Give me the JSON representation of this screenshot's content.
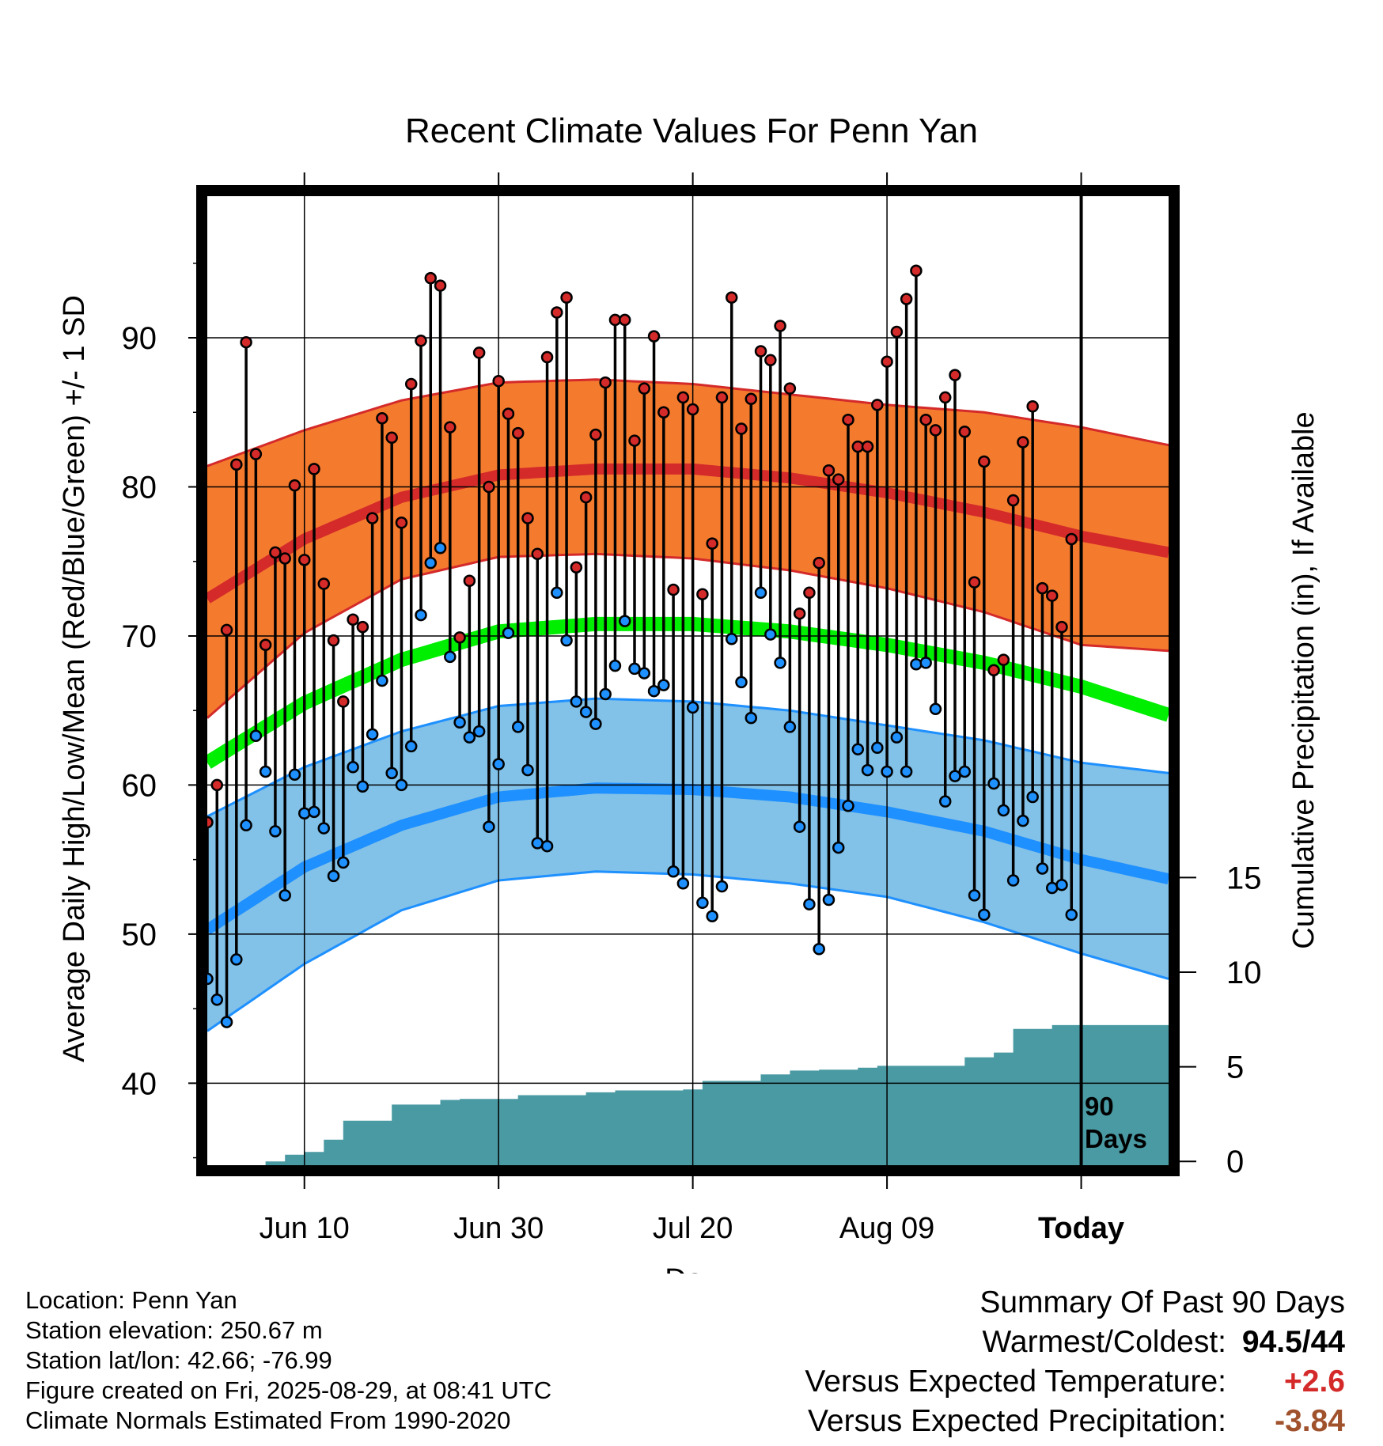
{
  "chart_data": {
    "type": "line",
    "title": "Recent Climate Values For Penn Yan",
    "xlabel": "Day",
    "ylabel": "Average Daily High/Low/Mean (Red/Blue/Green) +/- 1 SD",
    "y2label": "Cumulative Precipitation (in), If Available",
    "x_tick_labels": [
      "Jun 10",
      "Jun 30",
      "Jul 20",
      "Aug 09",
      "Today"
    ],
    "y_ticks": [
      40,
      50,
      60,
      70,
      80,
      90
    ],
    "y2_ticks": [
      0,
      5,
      10,
      15
    ],
    "ylim": [
      34.5,
      99.5
    ],
    "y2lim": [
      -0.2,
      51
    ],
    "x_start_day": -90,
    "today_label": "90 Days",
    "normals": {
      "colors": {
        "high": "#d42a2a",
        "high_band": "#f47b2e",
        "low": "#1e90ff",
        "low_band": "#82c1e8",
        "mean": "#00ee00"
      },
      "days": [
        -90,
        -80,
        -70,
        -60,
        -50,
        -40,
        -30,
        -20,
        -10,
        0,
        9
      ],
      "high_mean": [
        72.5,
        76.5,
        79.3,
        80.8,
        81.2,
        81.2,
        80.6,
        79.6,
        78.3,
        76.7,
        75.6
      ],
      "high_upper": [
        81.4,
        83.8,
        85.8,
        87.0,
        87.2,
        86.9,
        86.2,
        85.5,
        85.0,
        84.0,
        82.8
      ],
      "high_lower": [
        64.5,
        70.2,
        73.8,
        75.3,
        75.5,
        75.2,
        74.4,
        73.2,
        71.6,
        69.4,
        69.0
      ],
      "low_mean": [
        50.3,
        54.5,
        57.3,
        59.2,
        59.8,
        59.7,
        59.2,
        58.2,
        56.9,
        55.0,
        53.7
      ],
      "low_upper": [
        57.9,
        61.2,
        63.6,
        65.3,
        65.8,
        65.6,
        65.0,
        64.0,
        63.0,
        61.5,
        60.8
      ],
      "low_lower": [
        43.5,
        48.0,
        51.6,
        53.6,
        54.2,
        54.0,
        53.4,
        52.5,
        50.8,
        48.7,
        47.0
      ],
      "mean": [
        61.5,
        65.5,
        68.4,
        70.3,
        70.8,
        70.8,
        70.3,
        69.4,
        68.2,
        66.6,
        64.7
      ]
    },
    "daily": {
      "highs": [
        57.5,
        60.0,
        70.4,
        81.5,
        89.7,
        82.2,
        69.4,
        75.6,
        75.2,
        80.1,
        75.1,
        81.2,
        73.5,
        69.7,
        65.6,
        71.1,
        70.6,
        77.9,
        84.6,
        83.3,
        77.6,
        86.9,
        89.8,
        94.0,
        93.5,
        84.0,
        69.9,
        73.7,
        89.0,
        80.0,
        87.1,
        84.9,
        83.6,
        77.9,
        75.5,
        88.7,
        91.7,
        92.7,
        74.6,
        79.3,
        83.5,
        87.0,
        91.2,
        91.2,
        83.1,
        86.6,
        90.1,
        85.0,
        73.1,
        86.0,
        85.2,
        72.8,
        76.2,
        86.0,
        92.7,
        83.9,
        85.9,
        89.1,
        88.5,
        90.8,
        86.6,
        71.5,
        72.9,
        74.9,
        81.1,
        80.5,
        84.5,
        82.7,
        82.7,
        85.5,
        88.4,
        90.4,
        92.6,
        94.5,
        84.5,
        83.8,
        86.0,
        87.5,
        83.7,
        73.6,
        81.7,
        67.7,
        68.4,
        79.1,
        83.0,
        85.4,
        73.2,
        72.7,
        70.6,
        76.5
      ],
      "lows": [
        47.0,
        45.6,
        44.1,
        48.3,
        57.3,
        63.3,
        60.9,
        56.9,
        52.6,
        60.7,
        58.1,
        58.2,
        57.1,
        53.9,
        54.8,
        61.2,
        59.9,
        63.4,
        67.0,
        60.8,
        60.0,
        62.6,
        71.4,
        74.9,
        75.9,
        68.6,
        64.2,
        63.2,
        63.6,
        57.2,
        61.4,
        70.2,
        63.9,
        61.0,
        56.1,
        55.9,
        72.9,
        69.7,
        65.6,
        64.9,
        64.1,
        66.1,
        68.0,
        71.0,
        67.8,
        67.5,
        66.3,
        66.7,
        54.2,
        53.4,
        65.2,
        52.1,
        51.2,
        53.2,
        69.8,
        66.9,
        64.5,
        72.9,
        70.1,
        68.2,
        63.9,
        57.2,
        52.0,
        49.0,
        52.3,
        55.8,
        58.6,
        62.4,
        61.0,
        62.5,
        60.9,
        63.2,
        60.9,
        68.1,
        68.2,
        65.1,
        58.9,
        60.6,
        60.9,
        52.6,
        51.3,
        60.1,
        58.3,
        53.6,
        57.6,
        59.2,
        54.4,
        53.1,
        53.3,
        51.3
      ]
    },
    "precipitation": {
      "days": [
        -84,
        -82,
        -80,
        -78,
        -76,
        -71,
        -66,
        -64,
        -58,
        -51,
        -48,
        -41,
        -39,
        -33,
        -30,
        -27,
        -23,
        -21,
        -12,
        -9,
        -7,
        -3,
        9
      ],
      "cumulative": [
        0,
        0.35,
        0.5,
        1.15,
        2.15,
        3.0,
        3.25,
        3.3,
        3.5,
        3.65,
        3.75,
        3.8,
        4.25,
        4.6,
        4.8,
        4.85,
        4.95,
        5.05,
        5.5,
        5.75,
        7.0,
        7.2,
        7.3
      ]
    }
  },
  "footer": {
    "location": "Location: Penn Yan",
    "elevation": "Station elevation: 250.67 m",
    "latlon": "Station lat/lon: 42.66; -76.99",
    "created": "Figure created on Fri, 2025-08-29, at 08:41 UTC",
    "normals": "Climate Normals Estimated From 1990-2020"
  },
  "summary": {
    "title": "Summary Of Past 90 Days",
    "warm_cold_label": "Warmest/Coldest:",
    "warm_cold_value": "94.5/44",
    "temp_label": "Versus Expected Temperature:",
    "temp_value": "+2.6",
    "temp_color": "#d42a2a",
    "precip_label": "Versus Expected Precipitation:",
    "precip_value": "-3.84",
    "precip_color": "#a0522d"
  }
}
